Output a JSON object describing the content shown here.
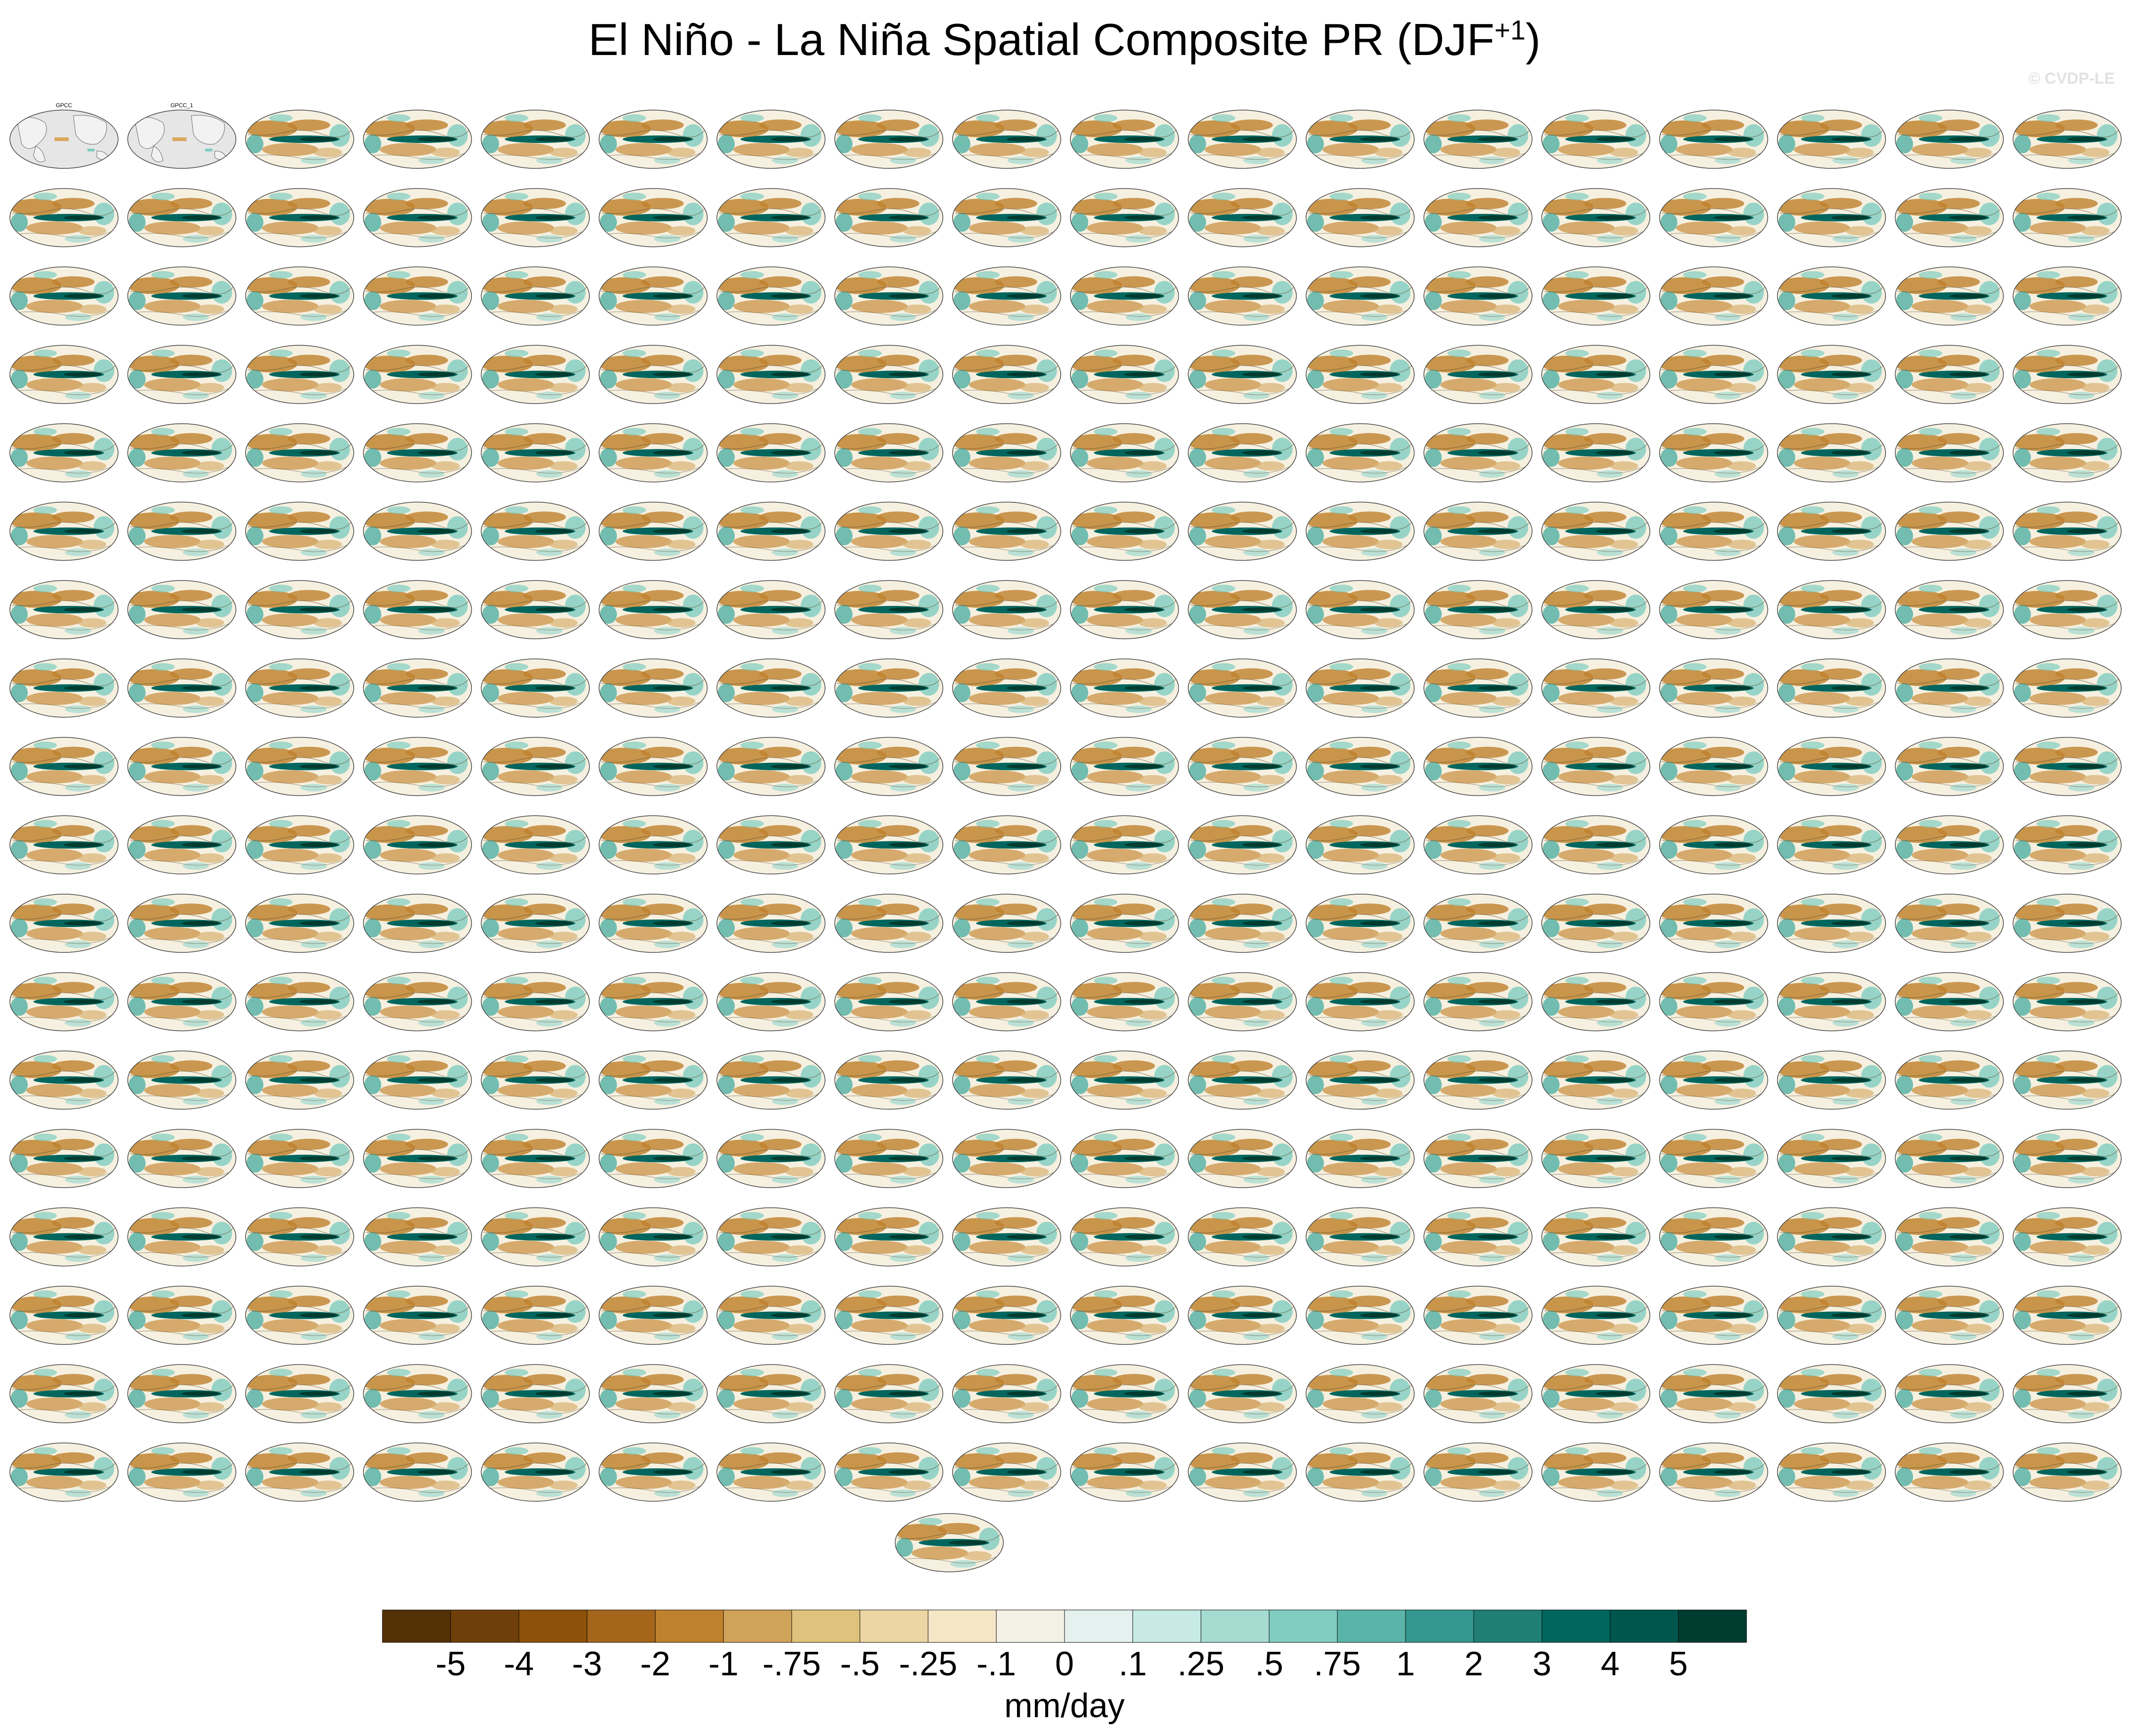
{
  "title": "El Niño - La Niña Spatial Composite PR (DJF",
  "title_sup": "+1",
  "watermark": "© CVDP-LE",
  "chart_data": {
    "type": "heatmap",
    "title": "El Niño - La Niña Spatial Composite PR (DJF+1)",
    "grid": {
      "rows": 18,
      "cols": 18,
      "extra_bottom_panels": 1
    },
    "observation_panels": [
      "GPCC",
      "GPCC_1"
    ],
    "colorbar": {
      "label": "mm/day",
      "tick_labels": [
        "-5",
        "-4",
        "-3",
        "-2",
        "-1",
        "-.75",
        "-.5",
        "-.25",
        "-.1",
        "0",
        ".1",
        ".25",
        ".5",
        ".75",
        "1",
        "2",
        "3",
        "4",
        "5"
      ],
      "colors": [
        "#543005",
        "#6f3f0b",
        "#8c510a",
        "#a5661c",
        "#bf812d",
        "#d0a35a",
        "#dfc27d",
        "#ecd6a4",
        "#f5e7c6",
        "#f3f0e6",
        "#e4f1ef",
        "#c7eae5",
        "#a6dbd2",
        "#80cdc1",
        "#5ab4a7",
        "#35978f",
        "#1f7f77",
        "#01665e",
        "#00564d",
        "#003c30"
      ]
    }
  }
}
